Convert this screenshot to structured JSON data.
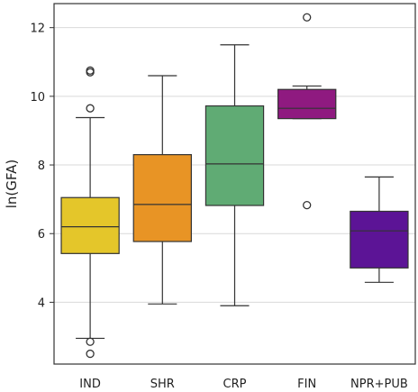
{
  "chart_data": {
    "type": "boxplot",
    "title": "",
    "xlabel": "",
    "ylabel": "ln(GFA)",
    "ylim": [
      2.2,
      12.7
    ],
    "yticks": [
      4,
      6,
      8,
      10,
      12
    ],
    "grid": "horizontal",
    "categories": [
      "IND",
      "SHR",
      "CRP",
      "FIN",
      "NPR+PUB"
    ],
    "boxes": [
      {
        "category": "IND",
        "whisker_low": 2.95,
        "q1": 5.42,
        "median": 6.2,
        "q3": 7.05,
        "whisker_high": 9.38,
        "outliers": [
          2.85,
          2.5,
          9.65,
          10.7,
          10.75
        ],
        "color": "#e4c62a"
      },
      {
        "category": "SHR",
        "whisker_low": 3.95,
        "q1": 5.77,
        "median": 6.85,
        "q3": 8.3,
        "whisker_high": 10.6,
        "outliers": [],
        "color": "#e89425"
      },
      {
        "category": "CRP",
        "whisker_low": 3.9,
        "q1": 6.82,
        "median": 8.03,
        "q3": 9.72,
        "whisker_high": 11.5,
        "outliers": [],
        "color": "#60ab74"
      },
      {
        "category": "FIN",
        "whisker_low": 9.35,
        "q1": 9.35,
        "median": 9.65,
        "q3": 10.2,
        "whisker_high": 10.3,
        "outliers": [
          6.83,
          12.3
        ],
        "color": "#8f1a80"
      },
      {
        "category": "NPR+PUB",
        "whisker_low": 4.58,
        "q1": 5.0,
        "median": 6.08,
        "q3": 6.65,
        "whisker_high": 7.65,
        "outliers": [],
        "color": "#5c1496"
      }
    ]
  }
}
